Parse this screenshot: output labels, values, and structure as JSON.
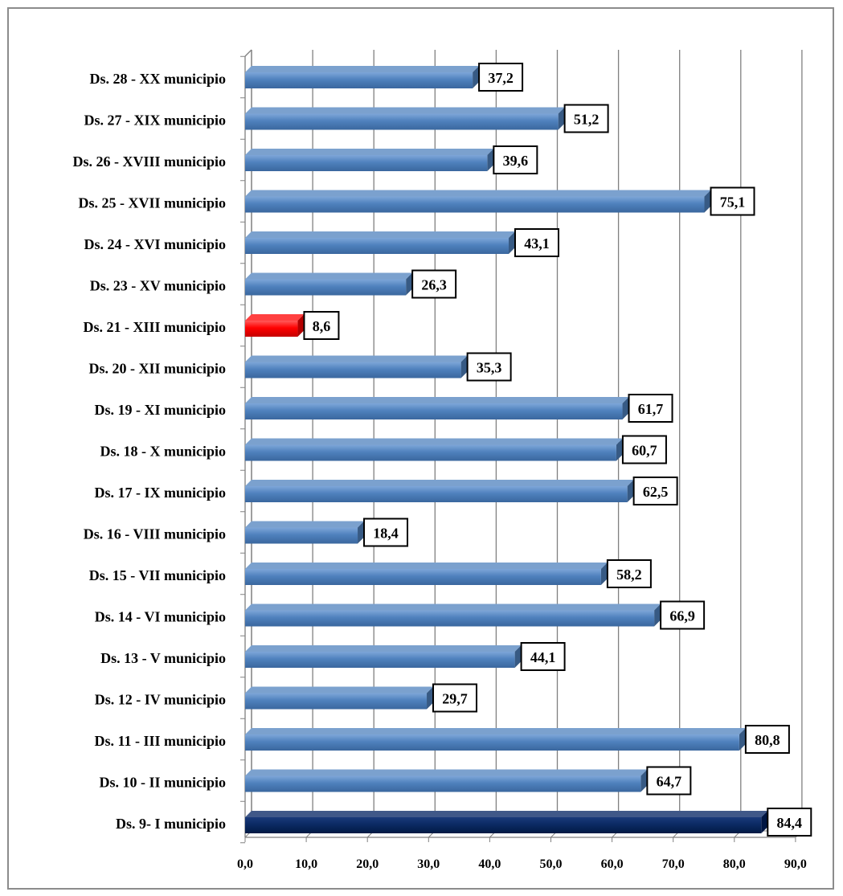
{
  "chart_data": {
    "type": "bar",
    "orientation": "horizontal",
    "categories": [
      "Ds. 28 - XX municipio",
      "Ds. 27 - XIX municipio",
      "Ds. 26 - XVIII municipio",
      "Ds. 25 -  XVII municipio",
      "Ds. 24 - XVI municipio",
      "Ds. 23 - XV municipio",
      "Ds. 21 - XIII municipio",
      "Ds. 20 - XII municipio",
      "Ds. 19 - XI municipio",
      "Ds. 18 - X municipio",
      "Ds. 17 - IX municipio",
      "Ds. 16 - VIII municipio",
      "Ds. 15 - VII municipio",
      "Ds. 14 - VI municipio",
      "Ds. 13 - V municipio",
      "Ds. 12 - IV municipio",
      "Ds. 11 - III municipio",
      "Ds. 10 - II municipio",
      "Ds.  9- I municipio"
    ],
    "values": [
      37.2,
      51.2,
      39.6,
      75.1,
      43.1,
      26.3,
      8.6,
      35.3,
      61.7,
      60.7,
      62.5,
      18.4,
      58.2,
      66.9,
      44.1,
      29.7,
      80.8,
      64.7,
      84.4
    ],
    "value_labels": [
      "37,2",
      "51,2",
      "39,6",
      "75,1",
      "43,1",
      "26,3",
      "8,6",
      "35,3",
      "61,7",
      "60,7",
      "62,5",
      "18,4",
      "58,2",
      "66,9",
      "44,1",
      "29,7",
      "80,8",
      "64,7",
      "84,4"
    ],
    "bar_colors": [
      "#4f81bd",
      "#4f81bd",
      "#4f81bd",
      "#4f81bd",
      "#4f81bd",
      "#4f81bd",
      "#ff0000",
      "#4f81bd",
      "#4f81bd",
      "#4f81bd",
      "#4f81bd",
      "#4f81bd",
      "#4f81bd",
      "#4f81bd",
      "#4f81bd",
      "#4f81bd",
      "#4f81bd",
      "#4f81bd",
      "#002060"
    ],
    "xticks": [
      0,
      10,
      20,
      30,
      40,
      50,
      60,
      70,
      80,
      90
    ],
    "xtick_labels": [
      "0,0",
      "10,0",
      "20,0",
      "30,0",
      "40,0",
      "50,0",
      "60,0",
      "70,0",
      "80,0",
      "90,0"
    ],
    "xlim": [
      0,
      90
    ],
    "title": "",
    "xlabel": "",
    "ylabel": "",
    "grid": "vertical",
    "legend": "none",
    "three_d": true,
    "colors": {
      "default_bar": "#4f81bd",
      "highlight_low": "#ff0000",
      "highlight_high": "#002060",
      "gridline": "#808080"
    }
  }
}
